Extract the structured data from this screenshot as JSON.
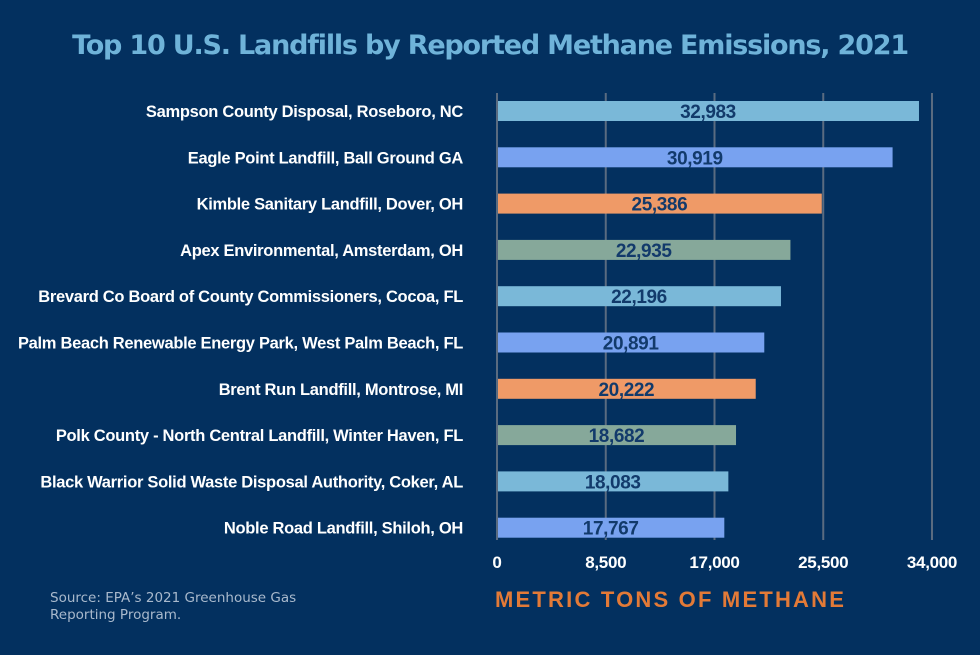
{
  "chart_data": {
    "type": "bar",
    "orientation": "horizontal",
    "title": "Top 10 U.S. Landfills by Reported Methane Emissions, 2021",
    "xlabel": "METRIC TONS OF METHANE",
    "ylabel": "",
    "xlim": [
      0,
      34000
    ],
    "grid": true,
    "x_ticks": [
      0,
      8500,
      17000,
      25500,
      34000
    ],
    "x_tick_labels": [
      "0",
      "8,500",
      "17,000",
      "25,500",
      "34,000"
    ],
    "categories": [
      "Sampson County Disposal, Roseboro, NC",
      "Eagle Point Landfill, Ball Ground GA",
      "Kimble Sanitary Landfill, Dover, OH",
      "Apex Environmental, Amsterdam, OH",
      "Brevard Co Board of County Commissioners, Cocoa, FL",
      "Palm Beach Renewable Energy Park, West Palm Beach, FL",
      "Brent Run Landfill, Montrose, MI",
      "Polk County - North Central Landfill, Winter Haven, FL",
      "Black Warrior Solid Waste Disposal Authority, Coker, AL",
      "Noble Road Landfill, Shiloh, OH"
    ],
    "values": [
      32983,
      30919,
      25386,
      22935,
      22196,
      20891,
      20222,
      18682,
      18083,
      17767
    ],
    "value_labels": [
      "32,983",
      "30,919",
      "25,386",
      "22,935",
      "22,196",
      "20,891",
      "20,222",
      "18,682",
      "18,083",
      "17,767"
    ],
    "bar_colors": [
      "#7ab8d8",
      "#78a2f0",
      "#ef9a67",
      "#86a89a",
      "#7ab8d8",
      "#78a2f0",
      "#ef9a67",
      "#86a89a",
      "#7ab8d8",
      "#78a2f0"
    ],
    "source": "Source: EPA’s 2021 Greenhouse Gas Reporting Program."
  },
  "colors": {
    "background": "#03305f",
    "title": "#6fb3d9",
    "axis_label": "#e37a37",
    "grid": "#5a6b80"
  }
}
